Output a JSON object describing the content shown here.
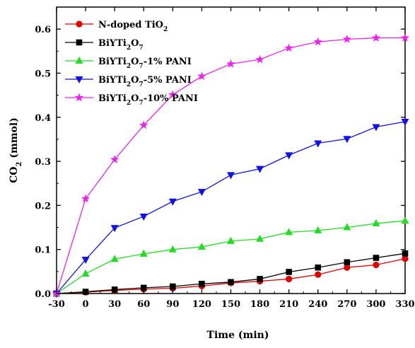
{
  "chart_data": {
    "type": "line",
    "xlabel": "Time (min)",
    "ylabel": "CO₂ (mmol)",
    "xlim": [
      -30,
      330
    ],
    "ylim": [
      0,
      0.65
    ],
    "xticks": [
      "-30",
      "0",
      "30",
      "60",
      "90",
      "120",
      "150",
      "180",
      "210",
      "240",
      "270",
      "300",
      "330"
    ],
    "yticks": [
      "0.0",
      "0.1",
      "0.2",
      "0.3",
      "0.4",
      "0.5",
      "0.6"
    ],
    "grid": false,
    "legend_position": "top-left",
    "x": [
      -30,
      0,
      30,
      60,
      90,
      120,
      150,
      180,
      210,
      240,
      270,
      300,
      330
    ],
    "series": [
      {
        "name": "N-doped TiO₂",
        "color": "#e00000",
        "marker": "circle",
        "values": [
          0.0,
          0.003,
          0.007,
          0.01,
          0.012,
          0.017,
          0.024,
          0.028,
          0.033,
          0.043,
          0.059,
          0.065,
          0.079
        ]
      },
      {
        "name": "BiYTi₂O₇",
        "color": "#000000",
        "marker": "square",
        "values": [
          0.0,
          0.004,
          0.009,
          0.013,
          0.016,
          0.022,
          0.026,
          0.033,
          0.049,
          0.059,
          0.071,
          0.081,
          0.091
        ]
      },
      {
        "name": "BiYTi₂O₇-1% PANI",
        "color": "#22dd22",
        "marker": "triangle-up",
        "values": [
          0.0,
          0.045,
          0.078,
          0.09,
          0.1,
          0.106,
          0.119,
          0.124,
          0.139,
          0.143,
          0.15,
          0.159,
          0.165
        ]
      },
      {
        "name": "BiYTi₂O₇-5% PANI",
        "color": "#1010ee",
        "marker": "triangle-down",
        "values": [
          0.0,
          0.077,
          0.149,
          0.175,
          0.209,
          0.231,
          0.269,
          0.283,
          0.314,
          0.341,
          0.351,
          0.378,
          0.39
        ]
      },
      {
        "name": "BiYTi₂O₇-10% PANI",
        "color": "#ee22ee",
        "marker": "star",
        "values": [
          0.0,
          0.215,
          0.304,
          0.382,
          0.451,
          0.493,
          0.521,
          0.531,
          0.557,
          0.571,
          0.577,
          0.58,
          0.58
        ]
      }
    ]
  }
}
